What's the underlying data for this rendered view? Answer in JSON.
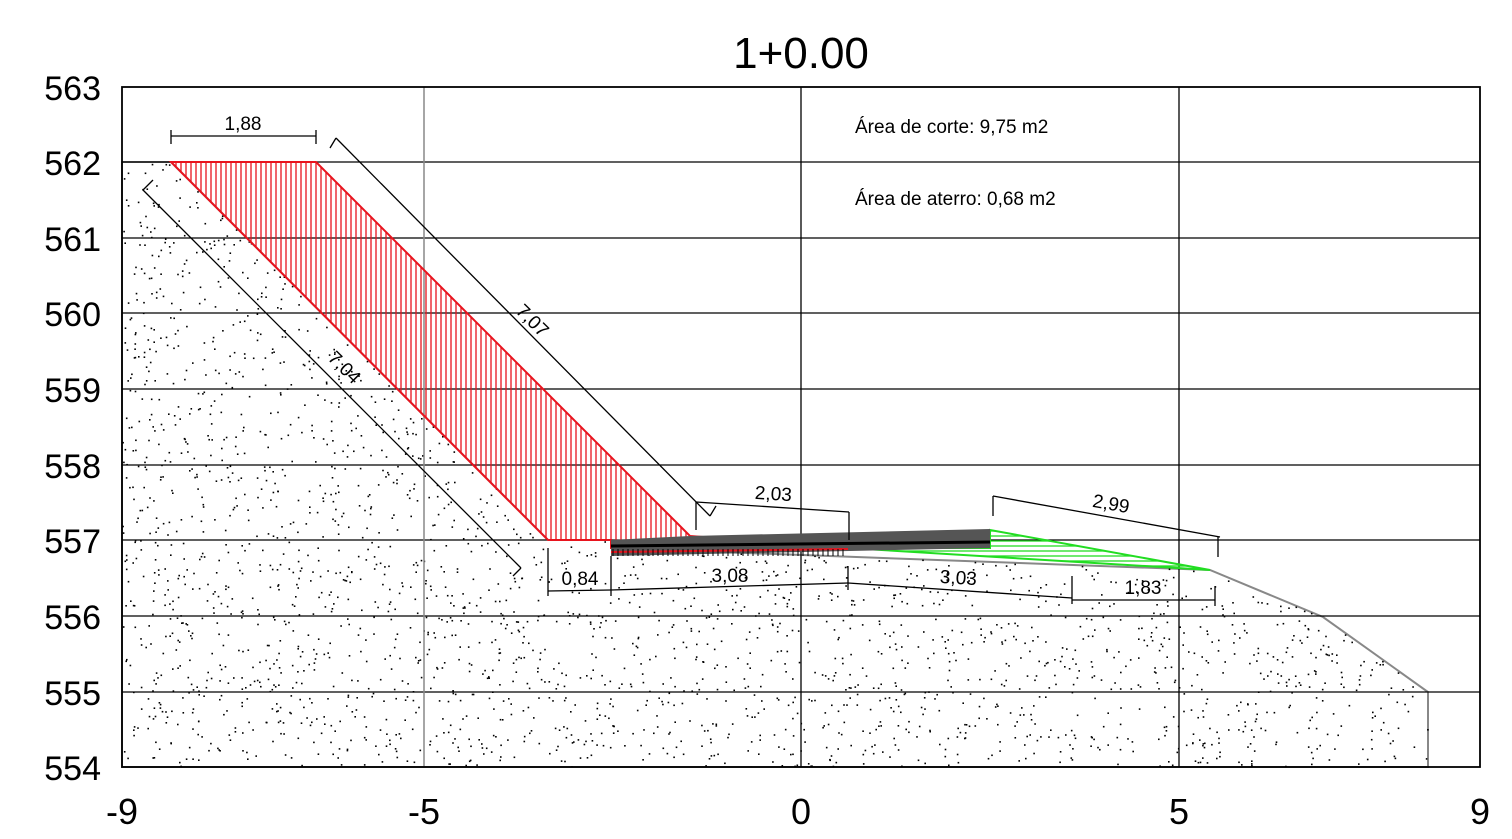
{
  "title": "1+0.00",
  "info": {
    "cut_area": "Área de corte: 9,75 m2",
    "fill_area": "Área de aterro: 0,68 m2"
  },
  "axes": {
    "x_ticks": [
      "-9",
      "-5",
      "0",
      "5",
      "9"
    ],
    "y_ticks": [
      "563",
      "562",
      "561",
      "560",
      "559",
      "558",
      "557",
      "556",
      "555",
      "554"
    ],
    "xlim": [
      -9,
      9
    ],
    "ylim": [
      554,
      563
    ],
    "grid": true
  },
  "dimensions": {
    "d1": "1,88",
    "d2": "7,07",
    "d3": "7,04",
    "d4": "2,03",
    "d5": "2,99",
    "d6": "0,84",
    "d7": "3,08",
    "d8": "3,03",
    "d9": "1,83"
  },
  "colors": {
    "cut": "#e8141e",
    "fill": "#22dd22",
    "ground_outline": "#888888",
    "pavement": "#555555"
  }
}
